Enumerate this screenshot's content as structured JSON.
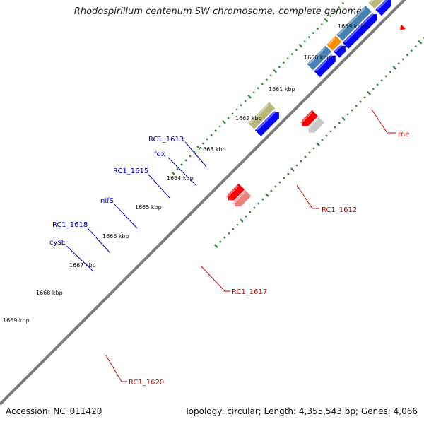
{
  "title": "Rhodospirillum centenum SW chromosome, complete genome",
  "footer": {
    "accession": "Accession: NC_011420",
    "info": "Topology: circular; Length: 4,355,543 bp; Genes: 4,066"
  },
  "colors": {
    "backbone": "#808080",
    "ticks": "#228b22",
    "forward_label": "#0000cc",
    "reverse_label": "#cc0000"
  },
  "kbp_labels": [
    "1659 kbp",
    "1660 kbp",
    "1661 kbp",
    "1662 kbp",
    "1663 kbp",
    "1664 kbp",
    "1665 kbp",
    "1666 kbp",
    "1667 kbp",
    "1668 kbp",
    "1669 kbp"
  ],
  "gene_labels": {
    "forward": [
      "RC1_1613",
      "fdx",
      "RC1_1615",
      "nifS",
      "RC1_1618",
      "cysE"
    ],
    "reverse": [
      "rne",
      "RC1_1612",
      "RC1_1617",
      "RC1_1620"
    ]
  }
}
